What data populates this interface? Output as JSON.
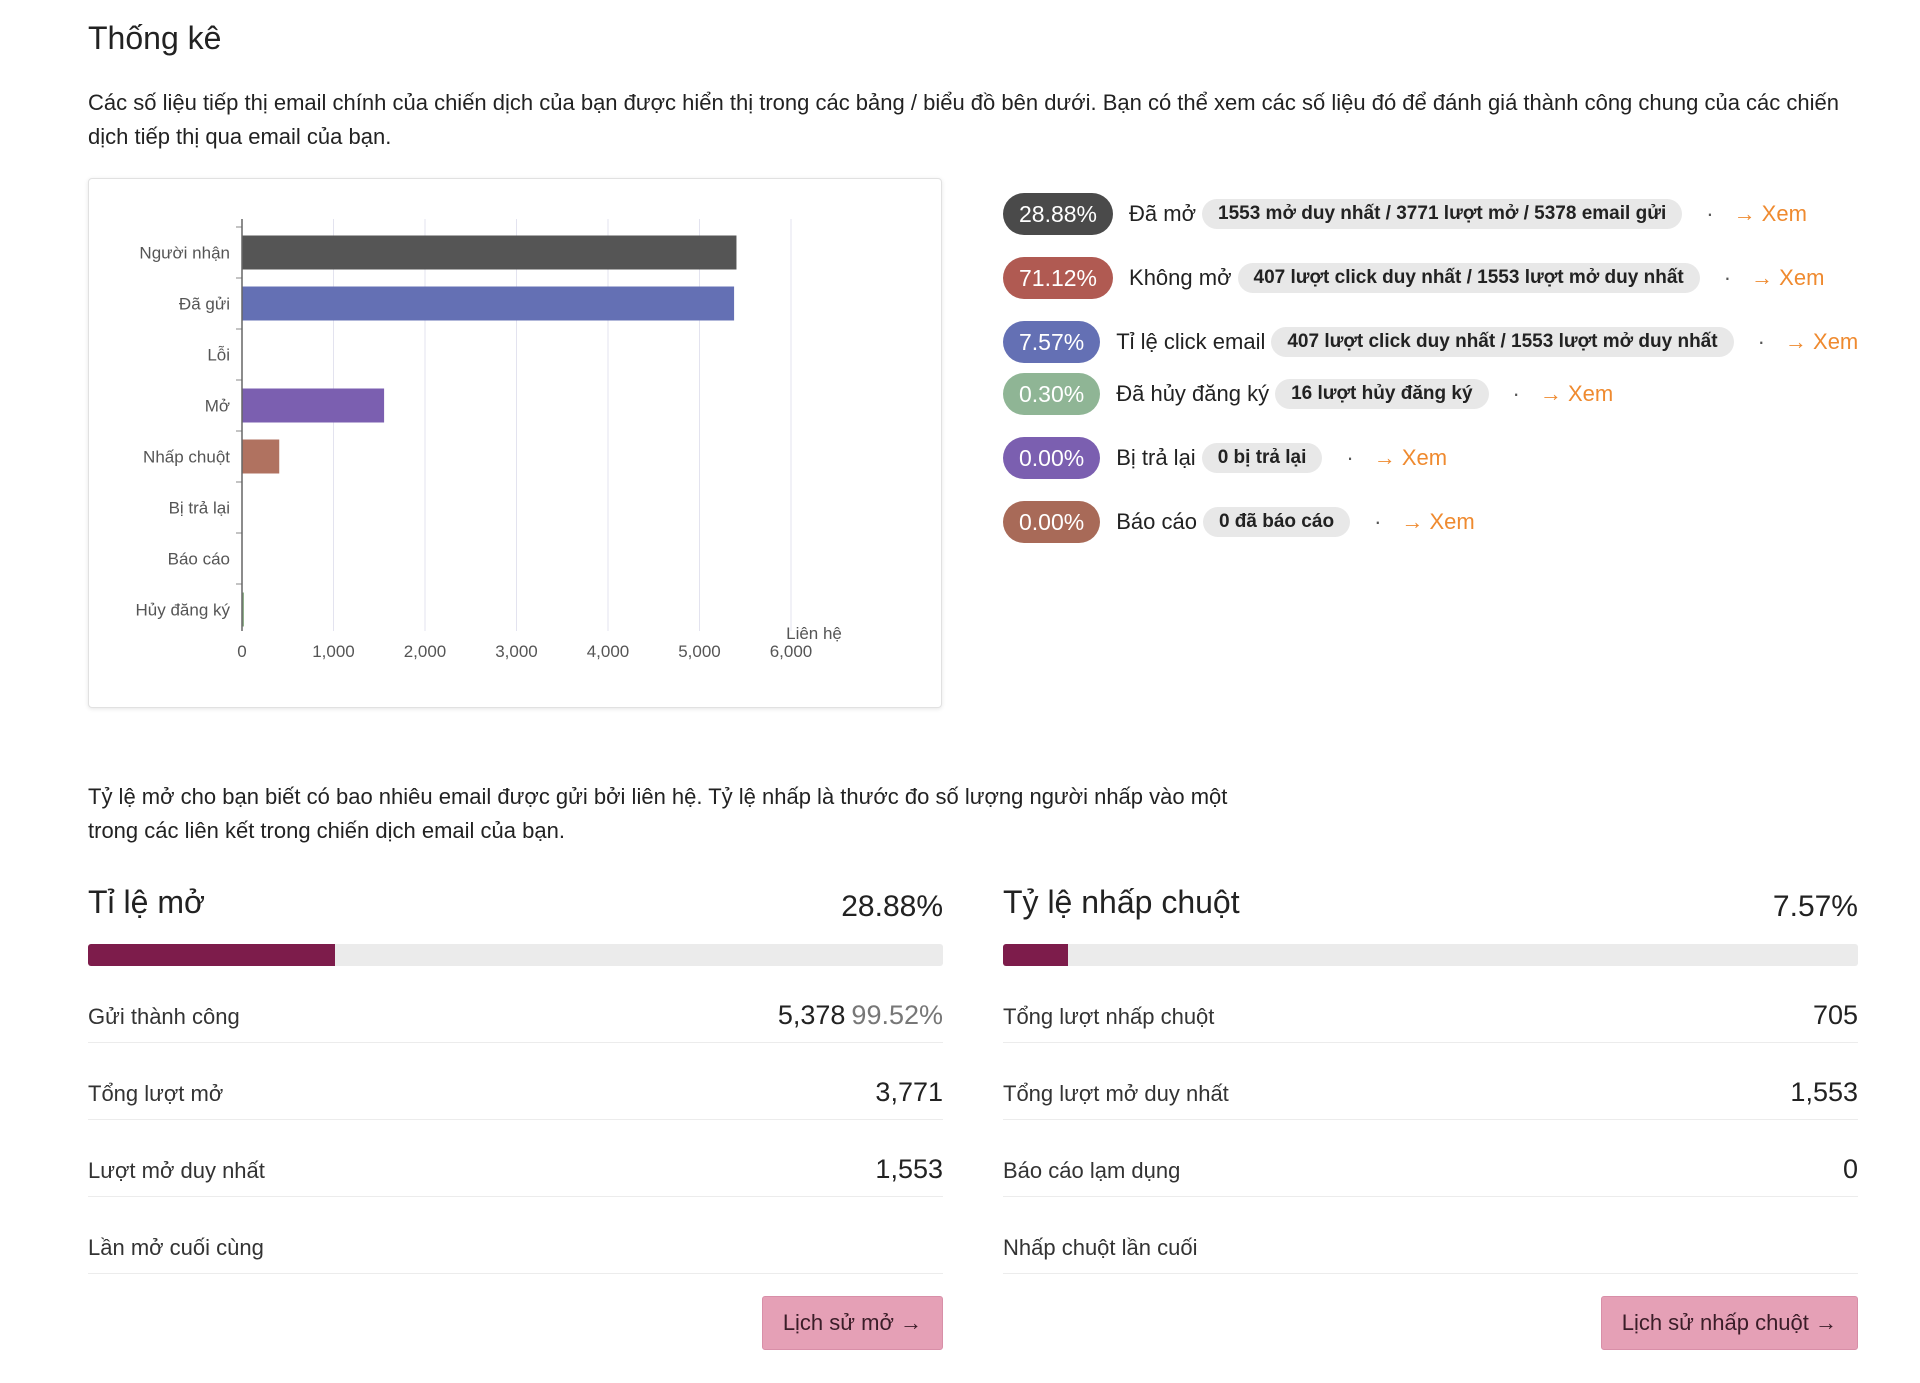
{
  "page": {
    "title": "Thống kê",
    "intro": "Các số liệu tiếp thị email chính của chiến dịch của bạn được hiển thị trong các bảng / biểu đồ bên dưới. Bạn có thể xem các số liệu đó để đánh giá thành công chung của các chiến dịch tiếp thị qua email của bạn.",
    "explain": "Tỷ lệ mở cho bạn biết có bao nhiêu email được gửi bởi liên hệ. Tỷ lệ nhấp là thước đo số lượng người nhấp vào một trong các liên kết trong chiến dịch email của bạn."
  },
  "chart_data": {
    "type": "bar",
    "orientation": "horizontal",
    "categories": [
      "Người nhận",
      "Đã gửi",
      "Lỗi",
      "Mở",
      "Nhấp chuột",
      "Bị trả lại",
      "Báo cáo",
      "Hủy đăng ký"
    ],
    "values": [
      5404,
      5378,
      0,
      1553,
      407,
      0,
      0,
      16
    ],
    "colors": [
      "#555555",
      "#6470b4",
      "#777777",
      "#7b5fb0",
      "#b07260",
      "#777777",
      "#777777",
      "#8fb08a"
    ],
    "xlim": [
      0,
      6000
    ],
    "xticks": [
      0,
      1000,
      2000,
      3000,
      4000,
      5000,
      6000
    ],
    "xtick_labels": [
      "0",
      "1,000",
      "2,000",
      "3,000",
      "4,000",
      "5,000",
      "6,000"
    ],
    "xlabel": "Liên hệ",
    "grid": true
  },
  "stats": [
    {
      "pct": "28.88%",
      "color": "#4a4a4a",
      "label": "Đã mở",
      "detail": "1553 mở duy nhất / 3771 lượt mở / 5378 email gửi",
      "dot": "·",
      "view": "→ Xem"
    },
    {
      "pct": "71.12%",
      "color": "#b05a52",
      "label": "Không mở",
      "detail": "407 lượt click duy nhất / 1553 lượt mở duy nhất",
      "dot": "·",
      "view": "→ Xem"
    },
    {
      "pct": "7.57%",
      "color": "#6470b4",
      "label": "Tỉ lệ click email",
      "detail": "407 lượt click duy nhất / 1553 lượt mở duy nhất",
      "dot": "·",
      "view": "→ Xem"
    },
    {
      "pct": "0.30%",
      "color": "#8fb595",
      "label": "Đã hủy đăng ký",
      "detail": "16 lượt hủy đăng ký",
      "dot": "·",
      "view": "→ Xem"
    },
    {
      "pct": "0.00%",
      "color": "#7b5fb0",
      "label": "Bị trả lại",
      "detail": "0 bị trả lại",
      "dot": "·",
      "view": "→ Xem"
    },
    {
      "pct": "0.00%",
      "color": "#a86a58",
      "label": "Báo cáo",
      "detail": "0 đã báo cáo",
      "dot": "·",
      "view": "→ Xem"
    }
  ],
  "open_panel": {
    "title": "Tỉ lệ mở",
    "value": "28.88%",
    "fill_percent": 28.88,
    "metrics": [
      {
        "label": "Gửi thành công",
        "value": "5,378",
        "sub": "99.52%"
      },
      {
        "label": "Tổng lượt mở",
        "value": "3,771"
      },
      {
        "label": "Lượt mở duy nhất",
        "value": "1,553"
      },
      {
        "label": "Lần mở cuối cùng",
        "value": ""
      }
    ],
    "button": "Lịch sử mở →"
  },
  "click_panel": {
    "title": "Tỷ lệ nhấp chuột",
    "value": "7.57%",
    "fill_percent": 7.57,
    "metrics": [
      {
        "label": "Tổng lượt nhấp chuột",
        "value": "705"
      },
      {
        "label": "Tổng lượt mở duy nhất",
        "value": "1,553"
      },
      {
        "label": "Báo cáo lạm dụng",
        "value": "0"
      },
      {
        "label": "Nhấp chuột lần cuối",
        "value": ""
      }
    ],
    "button": "Lịch sử nhấp chuột →"
  }
}
